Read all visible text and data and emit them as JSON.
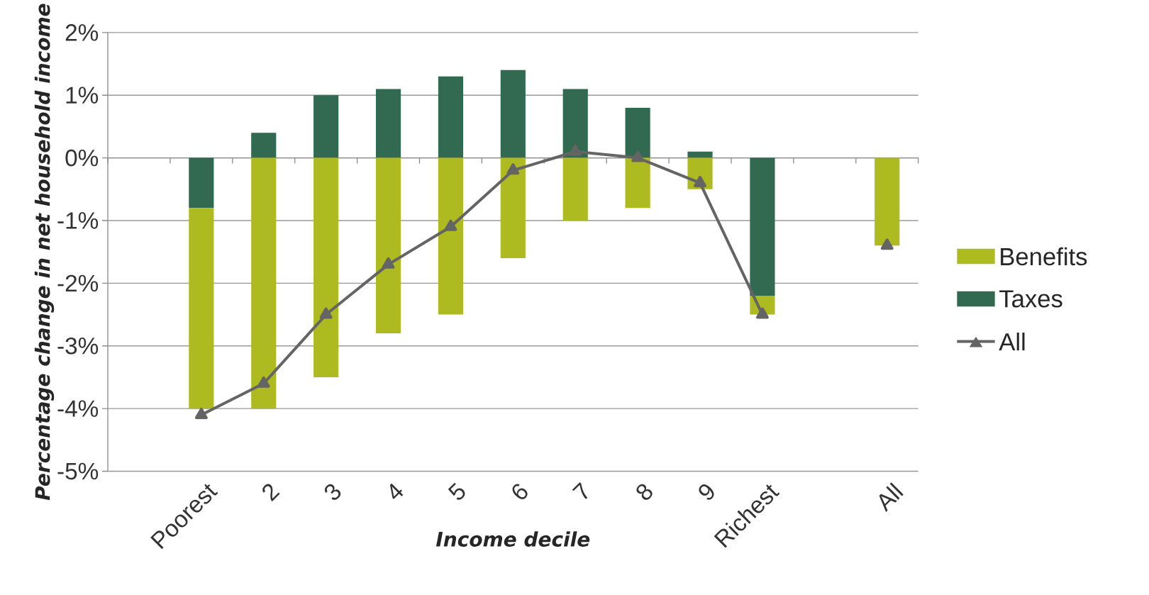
{
  "chart_data": {
    "type": "bar",
    "stacked": true,
    "xlabel": "Income decile",
    "ylabel": "Percentage change in net household income",
    "categories": [
      null,
      "Poorest",
      "2",
      "3",
      "4",
      "5",
      "6",
      "7",
      "8",
      "9",
      "Richest",
      null,
      "All"
    ],
    "series": [
      {
        "name": "Taxes",
        "color": "#316a50",
        "values": [
          null,
          -0.8,
          0.4,
          1.0,
          1.1,
          1.3,
          1.4,
          1.1,
          0.8,
          0.1,
          -2.2,
          null,
          null
        ]
      },
      {
        "name": "Benefits",
        "color": "#adbb20",
        "values": [
          null,
          -3.2,
          -4.0,
          -3.5,
          -2.8,
          -2.5,
          -1.6,
          -1.0,
          -0.8,
          -0.5,
          -0.3,
          null,
          -1.4
        ]
      },
      {
        "name": "All",
        "type": "line",
        "color": "#646464",
        "marker": "triangle",
        "line_style": "solid",
        "values": [
          null,
          -4.1,
          -3.6,
          -2.5,
          -1.7,
          -1.1,
          -0.2,
          0.1,
          0.0,
          -0.4,
          -2.5,
          null,
          -1.4
        ]
      }
    ],
    "ylim": [
      -5,
      2
    ],
    "yticks": [
      {
        "value": -5,
        "label": "-5%"
      },
      {
        "value": -4,
        "label": "-4%"
      },
      {
        "value": -3,
        "label": "-3%"
      },
      {
        "value": -2,
        "label": "-2%"
      },
      {
        "value": -1,
        "label": "-1%"
      },
      {
        "value": 0,
        "label": "0%"
      },
      {
        "value": 1,
        "label": "1%"
      },
      {
        "value": 2,
        "label": "2%"
      }
    ],
    "grid": "y",
    "legend": "right"
  }
}
